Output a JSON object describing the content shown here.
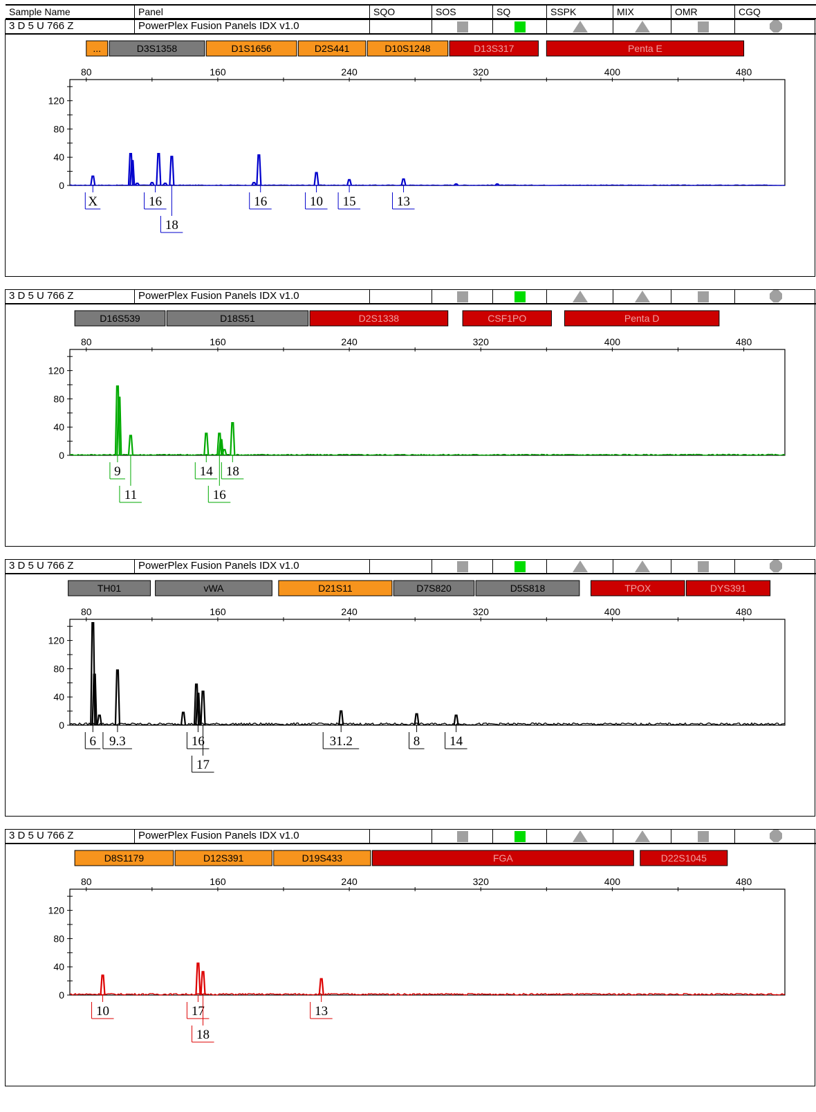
{
  "header": {
    "columns": [
      "Sample Name",
      "Panel",
      "SQO",
      "SOS",
      "SQ",
      "SSPK",
      "MIX",
      "OMR",
      "CGQ"
    ]
  },
  "colors": {
    "gray_locus": "#7a7a7a",
    "orange_locus": "#f7941d",
    "red_locus": "#cc0000",
    "qc_gray": "#a0a0a0",
    "qc_green": "#00dd00"
  },
  "chart_data": [
    {
      "type": "line",
      "dye": "blue",
      "color": "#0000cc",
      "sample_name": "3 D 5 U 766 Z",
      "panel_name": "PowerPlex Fusion Panels IDX v1.0",
      "qc_icons": [
        {
          "name": "sos-square-icon",
          "shape": "square",
          "color": "gray"
        },
        {
          "name": "sq-square-icon",
          "shape": "square",
          "color": "green"
        },
        {
          "name": "sspk-triangle-icon",
          "shape": "triangle",
          "color": "gray"
        },
        {
          "name": "mix-triangle-icon",
          "shape": "triangle",
          "color": "gray"
        },
        {
          "name": "omr-square-icon",
          "shape": "square",
          "color": "gray"
        },
        {
          "name": "cgq-octagon-icon",
          "shape": "octagon",
          "color": "gray"
        }
      ],
      "x_ticks": [
        80,
        160,
        240,
        320,
        400,
        480
      ],
      "y_ticks": [
        0,
        40,
        80,
        120
      ],
      "xlim": [
        70,
        505
      ],
      "ylim": [
        0,
        150
      ],
      "loci": [
        {
          "label": "...",
          "start": 80,
          "end": 93,
          "color": "orange"
        },
        {
          "label": "D3S1358",
          "start": 94,
          "end": 152,
          "color": "gray"
        },
        {
          "label": "D1S1656",
          "start": 153,
          "end": 208,
          "color": "orange"
        },
        {
          "label": "D2S441",
          "start": 209,
          "end": 250,
          "color": "orange"
        },
        {
          "label": "D10S1248",
          "start": 251,
          "end": 300,
          "color": "orange"
        },
        {
          "label": "D13S317",
          "start": 301,
          "end": 355,
          "color": "red"
        },
        {
          "label": "Penta E",
          "start": 360,
          "end": 480,
          "color": "red"
        }
      ],
      "peaks": [
        {
          "size": 84,
          "height": 13
        },
        {
          "size": 107,
          "height": 45
        },
        {
          "size": 108,
          "height": 35
        },
        {
          "size": 111,
          "height": 3
        },
        {
          "size": 120,
          "height": 4
        },
        {
          "size": 124,
          "height": 45
        },
        {
          "size": 128,
          "height": 3
        },
        {
          "size": 132,
          "height": 41
        },
        {
          "size": 182,
          "height": 4
        },
        {
          "size": 185,
          "height": 43
        },
        {
          "size": 220,
          "height": 18
        },
        {
          "size": 240,
          "height": 8
        },
        {
          "size": 273,
          "height": 9
        },
        {
          "size": 305,
          "height": 2
        },
        {
          "size": 330,
          "height": 2
        }
      ],
      "allele_labels": [
        {
          "label": "X",
          "size": 84,
          "row": 1
        },
        {
          "label": "16",
          "size": 122,
          "row": 1
        },
        {
          "label": "18",
          "size": 132,
          "row": 2
        },
        {
          "label": "16",
          "size": 186,
          "row": 1
        },
        {
          "label": "10",
          "size": 220,
          "row": 1
        },
        {
          "label": "15",
          "size": 240,
          "row": 1
        },
        {
          "label": "13",
          "size": 273,
          "row": 1
        }
      ]
    },
    {
      "type": "line",
      "dye": "green",
      "color": "#00aa00",
      "sample_name": "3 D 5 U 766 Z",
      "panel_name": "PowerPlex Fusion Panels IDX v1.0",
      "qc_icons": [
        {
          "name": "sos-square-icon",
          "shape": "square",
          "color": "gray"
        },
        {
          "name": "sq-square-icon",
          "shape": "square",
          "color": "green"
        },
        {
          "name": "sspk-triangle-icon",
          "shape": "triangle",
          "color": "gray"
        },
        {
          "name": "mix-triangle-icon",
          "shape": "triangle",
          "color": "gray"
        },
        {
          "name": "omr-square-icon",
          "shape": "square",
          "color": "gray"
        },
        {
          "name": "cgq-octagon-icon",
          "shape": "octagon",
          "color": "gray"
        }
      ],
      "x_ticks": [
        80,
        160,
        240,
        320,
        400,
        480
      ],
      "y_ticks": [
        0,
        40,
        80,
        120
      ],
      "xlim": [
        70,
        505
      ],
      "ylim": [
        0,
        150
      ],
      "loci": [
        {
          "label": "D16S539",
          "start": 73,
          "end": 128,
          "color": "gray"
        },
        {
          "label": "D18S51",
          "start": 129,
          "end": 215,
          "color": "gray"
        },
        {
          "label": "D2S1338",
          "start": 216,
          "end": 300,
          "color": "red"
        },
        {
          "label": "CSF1PO",
          "start": 309,
          "end": 363,
          "color": "red"
        },
        {
          "label": "Penta D",
          "start": 371,
          "end": 465,
          "color": "red"
        }
      ],
      "peaks": [
        {
          "size": 99,
          "height": 98
        },
        {
          "size": 100,
          "height": 82
        },
        {
          "size": 107,
          "height": 28
        },
        {
          "size": 153,
          "height": 31
        },
        {
          "size": 161,
          "height": 31
        },
        {
          "size": 162,
          "height": 22
        },
        {
          "size": 164,
          "height": 8
        },
        {
          "size": 169,
          "height": 46
        }
      ],
      "allele_labels": [
        {
          "label": "9",
          "size": 99,
          "row": 1
        },
        {
          "label": "11",
          "size": 107,
          "row": 2
        },
        {
          "label": "14",
          "size": 153,
          "row": 1
        },
        {
          "label": "16",
          "size": 161,
          "row": 2
        },
        {
          "label": "18",
          "size": 169,
          "row": 1
        }
      ]
    },
    {
      "type": "line",
      "dye": "black",
      "color": "#000000",
      "sample_name": "3 D 5 U 766 Z",
      "panel_name": "PowerPlex Fusion Panels IDX v1.0",
      "qc_icons": [
        {
          "name": "sos-square-icon",
          "shape": "square",
          "color": "gray"
        },
        {
          "name": "sq-square-icon",
          "shape": "square",
          "color": "green"
        },
        {
          "name": "sspk-triangle-icon",
          "shape": "triangle",
          "color": "gray"
        },
        {
          "name": "mix-triangle-icon",
          "shape": "triangle",
          "color": "gray"
        },
        {
          "name": "omr-square-icon",
          "shape": "square",
          "color": "gray"
        },
        {
          "name": "cgq-octagon-icon",
          "shape": "octagon",
          "color": "gray"
        }
      ],
      "x_ticks": [
        80,
        160,
        240,
        320,
        400,
        480
      ],
      "y_ticks": [
        0,
        40,
        80,
        120
      ],
      "xlim": [
        70,
        505
      ],
      "ylim": [
        0,
        150
      ],
      "loci": [
        {
          "label": "TH01",
          "start": 69,
          "end": 119,
          "color": "gray"
        },
        {
          "label": "vWA",
          "start": 122,
          "end": 193,
          "color": "gray"
        },
        {
          "label": "D21S11",
          "start": 197,
          "end": 266,
          "color": "orange"
        },
        {
          "label": "D7S820",
          "start": 267,
          "end": 316,
          "color": "gray"
        },
        {
          "label": "D5S818",
          "start": 317,
          "end": 380,
          "color": "gray"
        },
        {
          "label": "TPOX",
          "start": 387,
          "end": 444,
          "color": "red"
        },
        {
          "label": "DYS391",
          "start": 445,
          "end": 496,
          "color": "red"
        }
      ],
      "peaks": [
        {
          "size": 84,
          "height": 145
        },
        {
          "size": 85,
          "height": 72
        },
        {
          "size": 88,
          "height": 14
        },
        {
          "size": 99,
          "height": 78
        },
        {
          "size": 139,
          "height": 18
        },
        {
          "size": 147,
          "height": 58
        },
        {
          "size": 148,
          "height": 45
        },
        {
          "size": 151,
          "height": 48
        },
        {
          "size": 235,
          "height": 20
        },
        {
          "size": 281,
          "height": 16
        },
        {
          "size": 305,
          "height": 14
        }
      ],
      "allele_labels": [
        {
          "label": "6",
          "size": 84,
          "row": 1
        },
        {
          "label": "9.3",
          "size": 99,
          "row": 1
        },
        {
          "label": "16",
          "size": 148,
          "row": 1
        },
        {
          "label": "17",
          "size": 151,
          "row": 2
        },
        {
          "label": "31.2",
          "size": 235,
          "row": 1
        },
        {
          "label": "8",
          "size": 281,
          "row": 1
        },
        {
          "label": "14",
          "size": 305,
          "row": 1
        }
      ]
    },
    {
      "type": "line",
      "dye": "red",
      "color": "#dd0000",
      "sample_name": "3 D 5 U 766 Z",
      "panel_name": "PowerPlex Fusion Panels IDX v1.0",
      "qc_icons": [
        {
          "name": "sos-square-icon",
          "shape": "square",
          "color": "gray"
        },
        {
          "name": "sq-square-icon",
          "shape": "square",
          "color": "green"
        },
        {
          "name": "sspk-triangle-icon",
          "shape": "triangle",
          "color": "gray"
        },
        {
          "name": "mix-triangle-icon",
          "shape": "triangle",
          "color": "gray"
        },
        {
          "name": "omr-square-icon",
          "shape": "square",
          "color": "gray"
        },
        {
          "name": "cgq-octagon-icon",
          "shape": "octagon",
          "color": "gray"
        }
      ],
      "x_ticks": [
        80,
        160,
        240,
        320,
        400,
        480
      ],
      "y_ticks": [
        0,
        40,
        80,
        120
      ],
      "xlim": [
        70,
        505
      ],
      "ylim": [
        0,
        150
      ],
      "loci": [
        {
          "label": "D8S1179",
          "start": 73,
          "end": 133,
          "color": "orange"
        },
        {
          "label": "D12S391",
          "start": 134,
          "end": 193,
          "color": "orange"
        },
        {
          "label": "D19S433",
          "start": 194,
          "end": 253,
          "color": "orange"
        },
        {
          "label": "FGA",
          "start": 254,
          "end": 413,
          "color": "red"
        },
        {
          "label": "D22S1045",
          "start": 417,
          "end": 470,
          "color": "red"
        }
      ],
      "peaks": [
        {
          "size": 90,
          "height": 28
        },
        {
          "size": 148,
          "height": 45
        },
        {
          "size": 151,
          "height": 33
        },
        {
          "size": 223,
          "height": 23
        }
      ],
      "allele_labels": [
        {
          "label": "10",
          "size": 90,
          "row": 1
        },
        {
          "label": "17",
          "size": 148,
          "row": 1
        },
        {
          "label": "18",
          "size": 151,
          "row": 2
        },
        {
          "label": "13",
          "size": 223,
          "row": 1
        }
      ]
    }
  ]
}
